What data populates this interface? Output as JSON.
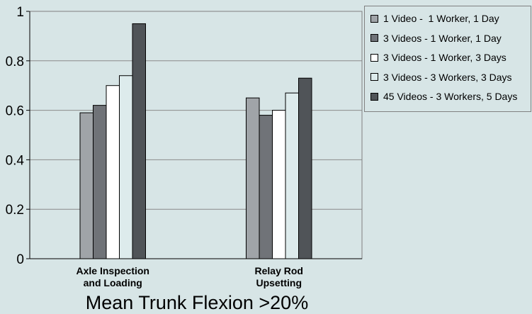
{
  "chart_data": {
    "type": "bar",
    "title": "Mean Trunk Flexion >20%",
    "categories": [
      "Axle Inspection and Loading",
      "Relay Rod Upsetting"
    ],
    "category_lines": [
      [
        "Axle Inspection",
        "and Loading"
      ],
      [
        "Relay Rod",
        "Upsetting"
      ]
    ],
    "ylim": [
      0,
      1
    ],
    "yticks": [
      "0",
      "0.2",
      "0.4",
      "0.6",
      "0.8",
      "1"
    ],
    "grid": true,
    "legend_position": "right",
    "series": [
      {
        "name": "1 Video -  1 Worker, 1 Day",
        "values": [
          0.59,
          0.65
        ],
        "color": "#a0a4a8"
      },
      {
        "name": "3 Videos - 1 Worker, 1 Day",
        "values": [
          0.62,
          0.58
        ],
        "color": "#707378"
      },
      {
        "name": "3 Videos - 1 Worker, 3 Days",
        "values": [
          0.7,
          0.6
        ],
        "color": "#ffffff"
      },
      {
        "name": "3 Videos - 3 Workers, 3 Days",
        "values": [
          0.74,
          0.67
        ],
        "color": "#ddebec"
      },
      {
        "name": "45 Videos - 3 Workers, 5 Days",
        "values": [
          0.95,
          0.73
        ],
        "color": "#505458"
      }
    ]
  }
}
